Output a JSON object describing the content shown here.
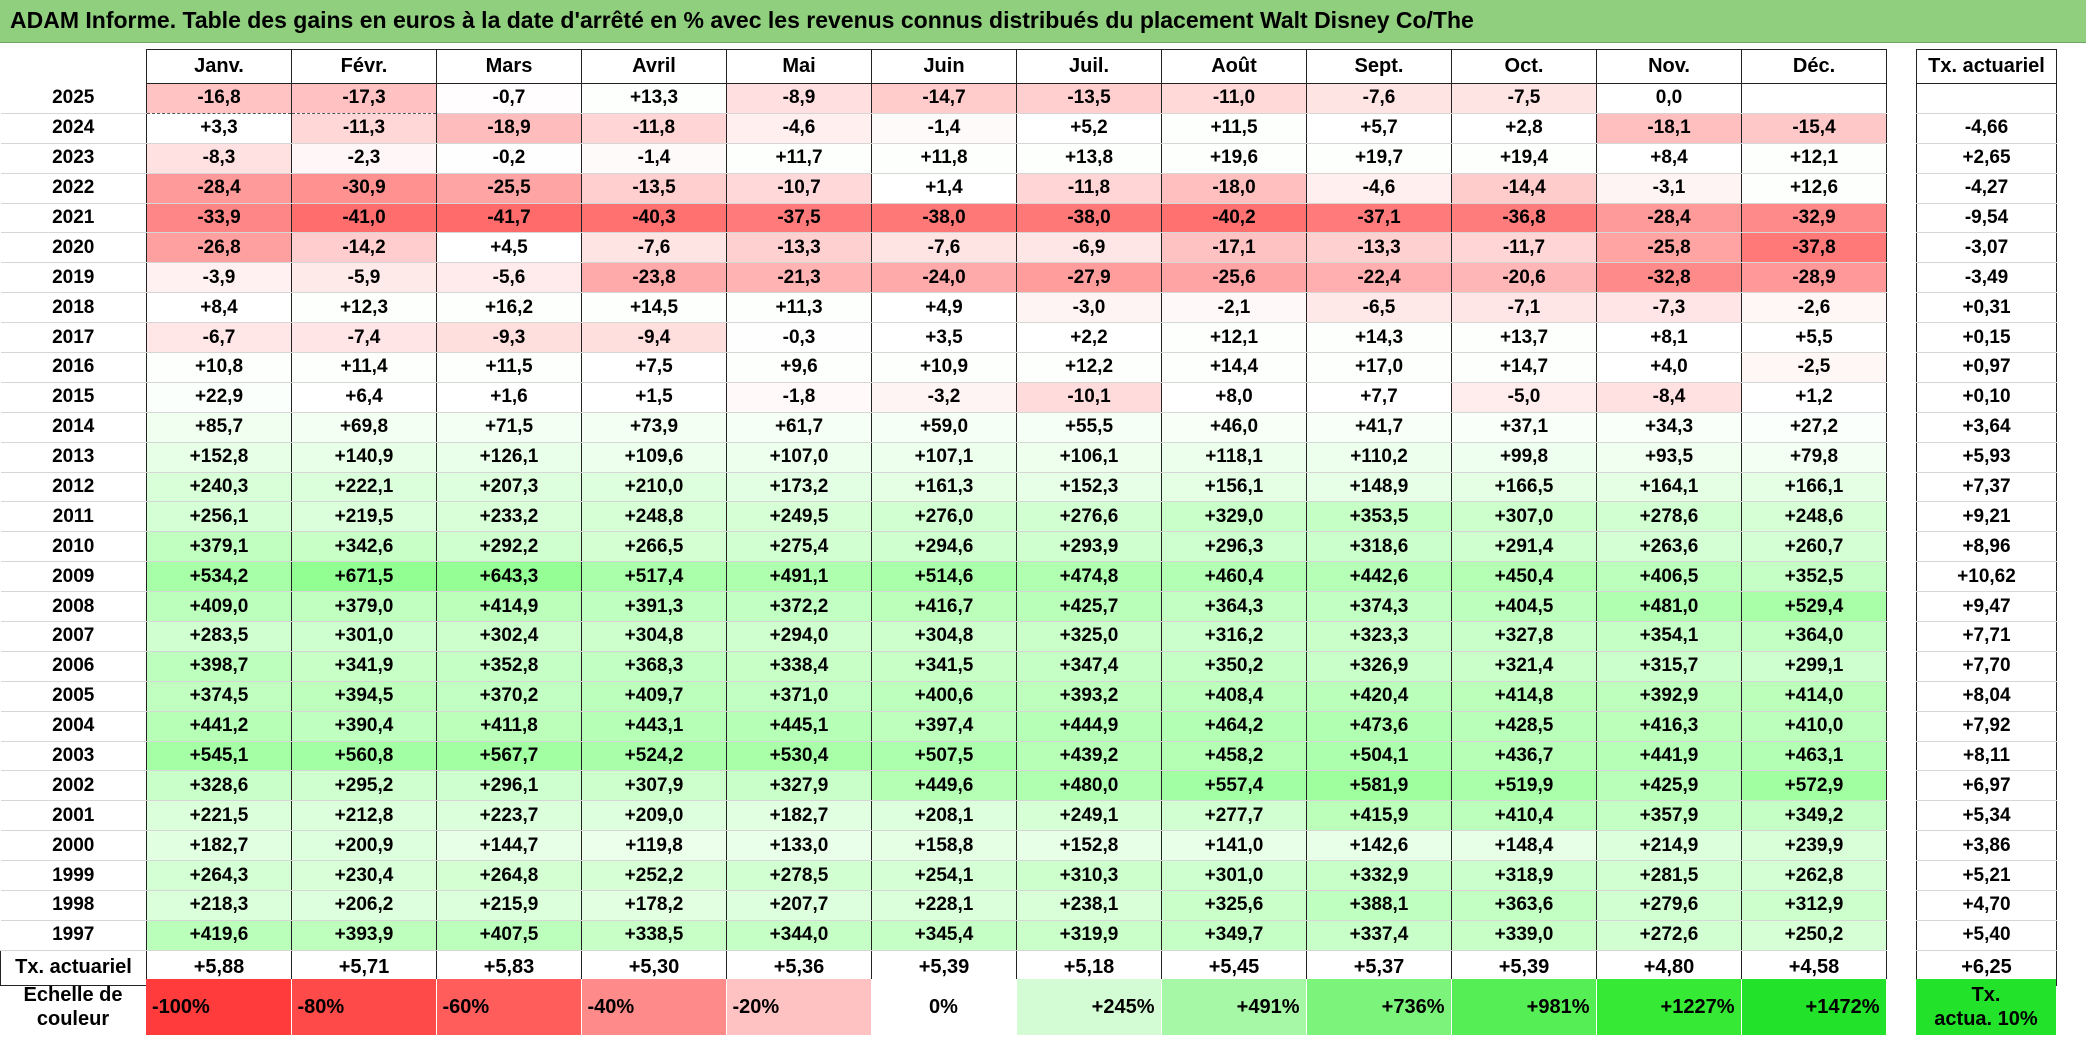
{
  "title": "ADAM Informe. Table des gains en euros à la date d'arrêté en % avec les revenus connus distribués du placement Walt Disney Co/The",
  "months": [
    "Janv.",
    "Févr.",
    "Mars",
    "Avril",
    "Mai",
    "Juin",
    "Juil.",
    "Août",
    "Sept.",
    "Oct.",
    "Nov.",
    "Déc."
  ],
  "annual_header": "Tx. actuariel",
  "rows": [
    {
      "year": "2025",
      "values": [
        "-16,8",
        "-17,3",
        "-0,7",
        "+13,3",
        "-8,9",
        "-14,7",
        "-13,5",
        "-11,0",
        "-7,6",
        "-7,5",
        "0,0",
        ""
      ],
      "annual": ""
    },
    {
      "year": "2024",
      "values": [
        "+3,3",
        "-11,3",
        "-18,9",
        "-11,8",
        "-4,6",
        "-1,4",
        "+5,2",
        "+11,5",
        "+5,7",
        "+2,8",
        "-18,1",
        "-15,4"
      ],
      "annual": "-4,66"
    },
    {
      "year": "2023",
      "values": [
        "-8,3",
        "-2,3",
        "-0,2",
        "-1,4",
        "+11,7",
        "+11,8",
        "+13,8",
        "+19,6",
        "+19,7",
        "+19,4",
        "+8,4",
        "+12,1"
      ],
      "annual": "+2,65"
    },
    {
      "year": "2022",
      "values": [
        "-28,4",
        "-30,9",
        "-25,5",
        "-13,5",
        "-10,7",
        "+1,4",
        "-11,8",
        "-18,0",
        "-4,6",
        "-14,4",
        "-3,1",
        "+12,6"
      ],
      "annual": "-4,27"
    },
    {
      "year": "2021",
      "values": [
        "-33,9",
        "-41,0",
        "-41,7",
        "-40,3",
        "-37,5",
        "-38,0",
        "-38,0",
        "-40,2",
        "-37,1",
        "-36,8",
        "-28,4",
        "-32,9"
      ],
      "annual": "-9,54"
    },
    {
      "year": "2020",
      "values": [
        "-26,8",
        "-14,2",
        "+4,5",
        "-7,6",
        "-13,3",
        "-7,6",
        "-6,9",
        "-17,1",
        "-13,3",
        "-11,7",
        "-25,8",
        "-37,8"
      ],
      "annual": "-3,07"
    },
    {
      "year": "2019",
      "values": [
        "-3,9",
        "-5,9",
        "-5,6",
        "-23,8",
        "-21,3",
        "-24,0",
        "-27,9",
        "-25,6",
        "-22,4",
        "-20,6",
        "-32,8",
        "-28,9"
      ],
      "annual": "-3,49"
    },
    {
      "year": "2018",
      "values": [
        "+8,4",
        "+12,3",
        "+16,2",
        "+14,5",
        "+11,3",
        "+4,9",
        "-3,0",
        "-2,1",
        "-6,5",
        "-7,1",
        "-7,3",
        "-2,6"
      ],
      "annual": "+0,31"
    },
    {
      "year": "2017",
      "values": [
        "-6,7",
        "-7,4",
        "-9,3",
        "-9,4",
        "-0,3",
        "+3,5",
        "+2,2",
        "+12,1",
        "+14,3",
        "+13,7",
        "+8,1",
        "+5,5"
      ],
      "annual": "+0,15"
    },
    {
      "year": "2016",
      "values": [
        "+10,8",
        "+11,4",
        "+11,5",
        "+7,5",
        "+9,6",
        "+10,9",
        "+12,2",
        "+14,4",
        "+17,0",
        "+14,7",
        "+4,0",
        "-2,5"
      ],
      "annual": "+0,97"
    },
    {
      "year": "2015",
      "values": [
        "+22,9",
        "+6,4",
        "+1,6",
        "+1,5",
        "-1,8",
        "-3,2",
        "-10,1",
        "+8,0",
        "+7,7",
        "-5,0",
        "-8,4",
        "+1,2"
      ],
      "annual": "+0,10"
    },
    {
      "year": "2014",
      "values": [
        "+85,7",
        "+69,8",
        "+71,5",
        "+73,9",
        "+61,7",
        "+59,0",
        "+55,5",
        "+46,0",
        "+41,7",
        "+37,1",
        "+34,3",
        "+27,2"
      ],
      "annual": "+3,64"
    },
    {
      "year": "2013",
      "values": [
        "+152,8",
        "+140,9",
        "+126,1",
        "+109,6",
        "+107,0",
        "+107,1",
        "+106,1",
        "+118,1",
        "+110,2",
        "+99,8",
        "+93,5",
        "+79,8"
      ],
      "annual": "+5,93"
    },
    {
      "year": "2012",
      "values": [
        "+240,3",
        "+222,1",
        "+207,3",
        "+210,0",
        "+173,2",
        "+161,3",
        "+152,3",
        "+156,1",
        "+148,9",
        "+166,5",
        "+164,1",
        "+166,1"
      ],
      "annual": "+7,37"
    },
    {
      "year": "2011",
      "values": [
        "+256,1",
        "+219,5",
        "+233,2",
        "+248,8",
        "+249,5",
        "+276,0",
        "+276,6",
        "+329,0",
        "+353,5",
        "+307,0",
        "+278,6",
        "+248,6"
      ],
      "annual": "+9,21"
    },
    {
      "year": "2010",
      "values": [
        "+379,1",
        "+342,6",
        "+292,2",
        "+266,5",
        "+275,4",
        "+294,6",
        "+293,9",
        "+296,3",
        "+318,6",
        "+291,4",
        "+263,6",
        "+260,7"
      ],
      "annual": "+8,96"
    },
    {
      "year": "2009",
      "values": [
        "+534,2",
        "+671,5",
        "+643,3",
        "+517,4",
        "+491,1",
        "+514,6",
        "+474,8",
        "+460,4",
        "+442,6",
        "+450,4",
        "+406,5",
        "+352,5"
      ],
      "annual": "+10,62"
    },
    {
      "year": "2008",
      "values": [
        "+409,0",
        "+379,0",
        "+414,9",
        "+391,3",
        "+372,2",
        "+416,7",
        "+425,7",
        "+364,3",
        "+374,3",
        "+404,5",
        "+481,0",
        "+529,4"
      ],
      "annual": "+9,47"
    },
    {
      "year": "2007",
      "values": [
        "+283,5",
        "+301,0",
        "+302,4",
        "+304,8",
        "+294,0",
        "+304,8",
        "+325,0",
        "+316,2",
        "+323,3",
        "+327,8",
        "+354,1",
        "+364,0"
      ],
      "annual": "+7,71"
    },
    {
      "year": "2006",
      "values": [
        "+398,7",
        "+341,9",
        "+352,8",
        "+368,3",
        "+338,4",
        "+341,5",
        "+347,4",
        "+350,2",
        "+326,9",
        "+321,4",
        "+315,7",
        "+299,1"
      ],
      "annual": "+7,70"
    },
    {
      "year": "2005",
      "values": [
        "+374,5",
        "+394,5",
        "+370,2",
        "+409,7",
        "+371,0",
        "+400,6",
        "+393,2",
        "+408,4",
        "+420,4",
        "+414,8",
        "+392,9",
        "+414,0"
      ],
      "annual": "+8,04"
    },
    {
      "year": "2004",
      "values": [
        "+441,2",
        "+390,4",
        "+411,8",
        "+443,1",
        "+445,1",
        "+397,4",
        "+444,9",
        "+464,2",
        "+473,6",
        "+428,5",
        "+416,3",
        "+410,0"
      ],
      "annual": "+7,92"
    },
    {
      "year": "2003",
      "values": [
        "+545,1",
        "+560,8",
        "+567,7",
        "+524,2",
        "+530,4",
        "+507,5",
        "+439,2",
        "+458,2",
        "+504,1",
        "+436,7",
        "+441,9",
        "+463,1"
      ],
      "annual": "+8,11"
    },
    {
      "year": "2002",
      "values": [
        "+328,6",
        "+295,2",
        "+296,1",
        "+307,9",
        "+327,9",
        "+449,6",
        "+480,0",
        "+557,4",
        "+581,9",
        "+519,9",
        "+425,9",
        "+572,9"
      ],
      "annual": "+6,97"
    },
    {
      "year": "2001",
      "values": [
        "+221,5",
        "+212,8",
        "+223,7",
        "+209,0",
        "+182,7",
        "+208,1",
        "+249,1",
        "+277,7",
        "+415,9",
        "+410,4",
        "+357,9",
        "+349,2"
      ],
      "annual": "+5,34"
    },
    {
      "year": "2000",
      "values": [
        "+182,7",
        "+200,9",
        "+144,7",
        "+119,8",
        "+133,0",
        "+158,8",
        "+152,8",
        "+141,0",
        "+142,6",
        "+148,4",
        "+214,9",
        "+239,9"
      ],
      "annual": "+3,86"
    },
    {
      "year": "1999",
      "values": [
        "+264,3",
        "+230,4",
        "+264,8",
        "+252,2",
        "+278,5",
        "+254,1",
        "+310,3",
        "+301,0",
        "+332,9",
        "+318,9",
        "+281,5",
        "+262,8"
      ],
      "annual": "+5,21"
    },
    {
      "year": "1998",
      "values": [
        "+218,3",
        "+206,2",
        "+215,9",
        "+178,2",
        "+207,7",
        "+228,1",
        "+238,1",
        "+325,6",
        "+388,1",
        "+363,6",
        "+279,6",
        "+312,9"
      ],
      "annual": "+4,70"
    },
    {
      "year": "1997",
      "values": [
        "+419,6",
        "+393,9",
        "+407,5",
        "+338,5",
        "+344,0",
        "+345,4",
        "+319,9",
        "+349,7",
        "+337,4",
        "+339,0",
        "+272,6",
        "+250,2"
      ],
      "annual": "+5,40"
    }
  ],
  "total_row": {
    "label": "Tx. actuariel",
    "values": [
      "+5,88",
      "+5,71",
      "+5,83",
      "+5,30",
      "+5,36",
      "+5,39",
      "+5,18",
      "+5,45",
      "+5,37",
      "+5,39",
      "+4,80",
      "+4,58"
    ],
    "annual": "+6,25"
  },
  "scale": {
    "label_line1": "Echelle de",
    "label_line2": "couleur",
    "steps": [
      {
        "label": "-100%",
        "color": "#ff3b3b",
        "align": "left"
      },
      {
        "label": "-80%",
        "color": "#ff4a4a",
        "align": "left"
      },
      {
        "label": "-60%",
        "color": "#ff5c5c",
        "align": "left"
      },
      {
        "label": "-40%",
        "color": "#ff8a8a",
        "align": "left"
      },
      {
        "label": "-20%",
        "color": "#ffc2c2",
        "align": "left"
      },
      {
        "label": "0%",
        "color": "#ffffff",
        "align": "center"
      },
      {
        "label": "+245%",
        "color": "#d4fcd4",
        "align": "right"
      },
      {
        "label": "+491%",
        "color": "#a6f8a6",
        "align": "right"
      },
      {
        "label": "+736%",
        "color": "#7cf47c",
        "align": "right"
      },
      {
        "label": "+981%",
        "color": "#55ef55",
        "align": "right"
      },
      {
        "label": "+1227%",
        "color": "#35e935",
        "align": "right"
      },
      {
        "label": "+1472%",
        "color": "#22e22a",
        "align": "right"
      }
    ],
    "annual_line1": "Tx.",
    "annual_line2": "actua. 10%"
  }
}
